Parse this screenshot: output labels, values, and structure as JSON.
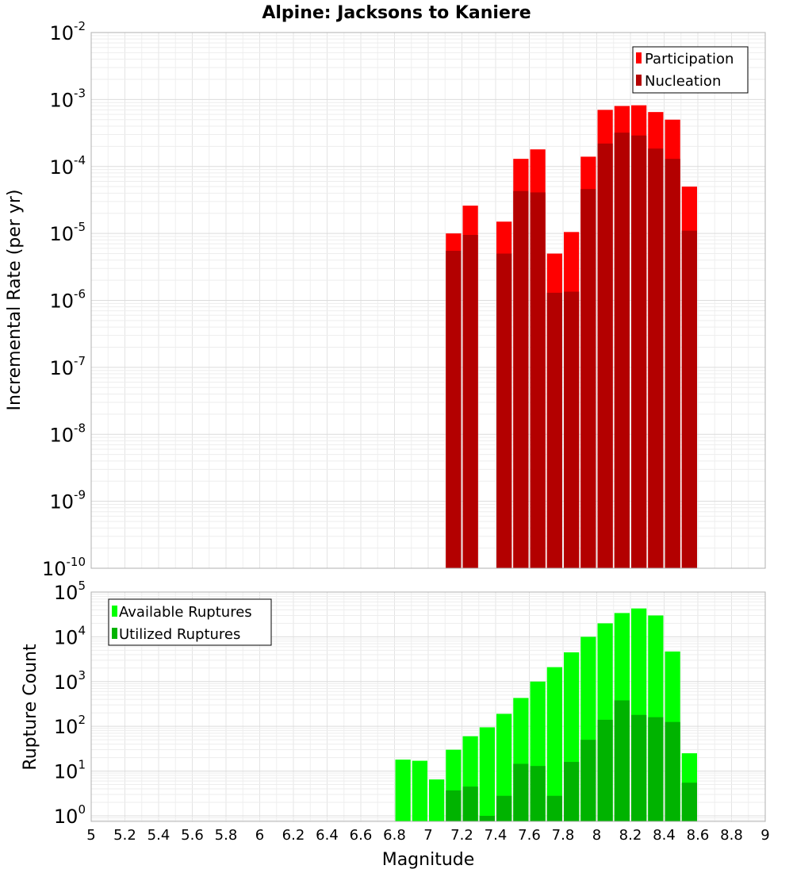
{
  "chart_data": [
    {
      "type": "bar",
      "title": "Alpine: Jacksons to Kaniere",
      "xlabel": "Magnitude",
      "ylabel": "Incremental Rate (per yr)",
      "yscale": "log",
      "ylim": [
        1e-10,
        0.01
      ],
      "xlim": [
        5,
        9
      ],
      "y_ticks": [
        {
          "base": "10",
          "exp": "-10"
        },
        {
          "base": "10",
          "exp": "-9"
        },
        {
          "base": "10",
          "exp": "-8"
        },
        {
          "base": "10",
          "exp": "-7"
        },
        {
          "base": "10",
          "exp": "-6"
        },
        {
          "base": "10",
          "exp": "-5"
        },
        {
          "base": "10",
          "exp": "-4"
        },
        {
          "base": "10",
          "exp": "-3"
        },
        {
          "base": "10",
          "exp": "-2"
        }
      ],
      "legend": {
        "position": "top-right"
      },
      "bar_width": 0.1,
      "x": [
        7.15,
        7.25,
        7.45,
        7.55,
        7.65,
        7.75,
        7.85,
        7.95,
        8.05,
        8.15,
        8.25,
        8.35,
        8.45,
        8.55
      ],
      "series": [
        {
          "name": "Participation",
          "color": "#ff0000",
          "values": [
            1e-05,
            2.6e-05,
            1.5e-05,
            0.00013,
            0.00018,
            5e-06,
            1.05e-05,
            0.00014,
            0.0007,
            0.0008,
            0.00082,
            0.00065,
            0.0005,
            5e-05
          ]
        },
        {
          "name": "Nucleation",
          "color": "#b30000",
          "values": [
            5.5e-06,
            9.5e-06,
            5e-06,
            4.3e-05,
            4.1e-05,
            1.3e-06,
            1.35e-06,
            4.6e-05,
            0.00022,
            0.00032,
            0.00029,
            0.000185,
            0.00013,
            1.1e-05
          ]
        }
      ]
    },
    {
      "type": "bar",
      "xlabel": "Magnitude",
      "ylabel": "Rupture Count",
      "yscale": "log",
      "ylim": [
        0.75,
        100000.0
      ],
      "xlim": [
        5,
        9
      ],
      "x_ticks": [
        "5",
        "5.2",
        "5.4",
        "5.6",
        "5.8",
        "6",
        "6.2",
        "6.4",
        "6.6",
        "6.8",
        "7",
        "7.2",
        "7.4",
        "7.6",
        "7.8",
        "8",
        "8.2",
        "8.4",
        "8.6",
        "8.8",
        "9"
      ],
      "y_ticks": [
        {
          "base": "10",
          "exp": "0"
        },
        {
          "base": "10",
          "exp": "1"
        },
        {
          "base": "10",
          "exp": "2"
        },
        {
          "base": "10",
          "exp": "3"
        },
        {
          "base": "10",
          "exp": "4"
        },
        {
          "base": "10",
          "exp": "5"
        }
      ],
      "legend": {
        "position": "top-left"
      },
      "bar_width": 0.1,
      "x": [
        6.85,
        6.95,
        7.05,
        7.15,
        7.25,
        7.35,
        7.45,
        7.55,
        7.65,
        7.75,
        7.85,
        7.95,
        8.05,
        8.15,
        8.25,
        8.35,
        8.45,
        8.55
      ],
      "series": [
        {
          "name": "Available Ruptures",
          "color": "#00ff00",
          "values": [
            18,
            17,
            6.5,
            30,
            60,
            95,
            190,
            430,
            1000,
            2100,
            4500,
            10000,
            20000,
            34000,
            43000,
            30000,
            4700,
            25
          ]
        },
        {
          "name": "Utilized Ruptures",
          "color": "#00b300",
          "values": [
            0,
            0,
            0,
            3.7,
            4.5,
            1.0,
            2.8,
            14.5,
            13,
            2.8,
            16,
            50,
            140,
            380,
            180,
            160,
            125,
            5.5
          ]
        }
      ]
    }
  ]
}
